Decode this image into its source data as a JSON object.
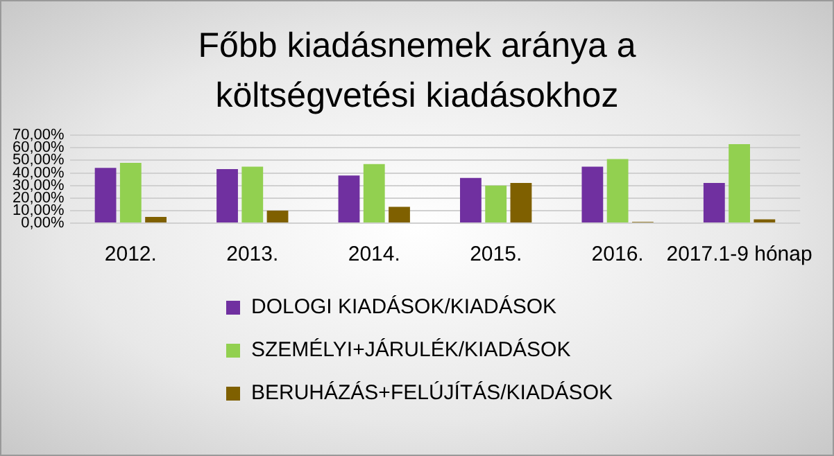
{
  "chart_data": {
    "type": "bar",
    "title": "Főbb kiadásnemek aránya a költségvetési kiadásokhoz",
    "categories": [
      "2012.",
      "2013.",
      "2014.",
      "2015.",
      "2016.",
      "2017.1-9 hónap"
    ],
    "series": [
      {
        "name": "DOLOGI KIADÁSOK/KIADÁSOK",
        "color": "#7030a0",
        "values": [
          44,
          43,
          38,
          36,
          45,
          32
        ]
      },
      {
        "name": "SZEMÉLYI+JÁRULÉK/KIADÁSOK",
        "color": "#92d050",
        "values": [
          48,
          45,
          47,
          30,
          51,
          63
        ]
      },
      {
        "name": "BERUHÁZÁS+FELÚJÍTÁS/KIADÁSOK",
        "color": "#7f6000",
        "values": [
          5,
          10,
          13,
          32,
          1,
          3
        ]
      }
    ],
    "ylim": [
      0,
      70
    ],
    "yticks": [
      {
        "value": 0,
        "label": "0,00%"
      },
      {
        "value": 10,
        "label": "10,00%"
      },
      {
        "value": 20,
        "label": "20,00%"
      },
      {
        "value": 30,
        "label": "30,00%"
      },
      {
        "value": 40,
        "label": "40,00%"
      },
      {
        "value": 50,
        "label": "50,00%"
      },
      {
        "value": 60,
        "label": "60,00%"
      },
      {
        "value": 70,
        "label": "70,00%"
      }
    ],
    "grid": "y",
    "legend": "bottom"
  }
}
